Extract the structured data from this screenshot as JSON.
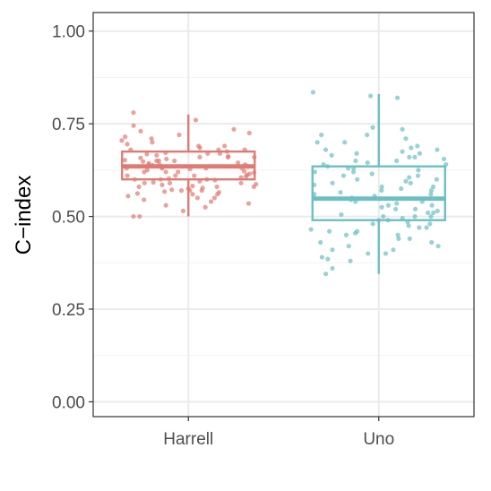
{
  "chart_data": {
    "type": "boxplot",
    "ylabel": "C−index",
    "xlabel": "",
    "title": "",
    "ylim": [
      -0.04,
      1.05
    ],
    "yticks": [
      0.0,
      0.25,
      0.5,
      0.75,
      1.0
    ],
    "ytick_labels": [
      "0.00",
      "0.25",
      "0.50",
      "0.75",
      "1.00"
    ],
    "grid": true,
    "legend": "none",
    "categories": [
      "Harrell",
      "Uno"
    ],
    "series": [
      {
        "category": "Harrell",
        "color": "#e07b73",
        "box": {
          "min": 0.5,
          "q1": 0.6,
          "median": 0.635,
          "q3": 0.675,
          "max": 0.775
        },
        "points": [
          0.78,
          0.735,
          0.725,
          0.715,
          0.705,
          0.695,
          0.69,
          0.685,
          0.68,
          0.675,
          0.672,
          0.668,
          0.665,
          0.662,
          0.66,
          0.658,
          0.655,
          0.652,
          0.65,
          0.648,
          0.645,
          0.643,
          0.64,
          0.638,
          0.636,
          0.634,
          0.632,
          0.63,
          0.628,
          0.625,
          0.622,
          0.62,
          0.618,
          0.615,
          0.612,
          0.61,
          0.608,
          0.605,
          0.602,
          0.6,
          0.598,
          0.595,
          0.592,
          0.59,
          0.587,
          0.585,
          0.582,
          0.58,
          0.577,
          0.575,
          0.572,
          0.57,
          0.567,
          0.565,
          0.562,
          0.56,
          0.555,
          0.55,
          0.545,
          0.54,
          0.535,
          0.53,
          0.525,
          0.515,
          0.5,
          0.5,
          0.76,
          0.745,
          0.73,
          0.72,
          0.71,
          0.7,
          0.69,
          0.68,
          0.67,
          0.66,
          0.65,
          0.64,
          0.63,
          0.62,
          0.61,
          0.6,
          0.59,
          0.58,
          0.57,
          0.56,
          0.55,
          0.64,
          0.63,
          0.62,
          0.66,
          0.61,
          0.65,
          0.59,
          0.6,
          0.67,
          0.58,
          0.57,
          0.68,
          0.63
        ]
      },
      {
        "category": "Uno",
        "color": "#6cbfc2",
        "box": {
          "min": 0.345,
          "q1": 0.49,
          "median": 0.548,
          "q3": 0.635,
          "max": 0.83
        },
        "points": [
          0.835,
          0.825,
          0.82,
          0.74,
          0.735,
          0.72,
          0.71,
          0.7,
          0.69,
          0.685,
          0.68,
          0.675,
          0.67,
          0.665,
          0.66,
          0.655,
          0.65,
          0.645,
          0.64,
          0.635,
          0.63,
          0.625,
          0.62,
          0.615,
          0.61,
          0.605,
          0.6,
          0.595,
          0.59,
          0.585,
          0.58,
          0.575,
          0.57,
          0.565,
          0.56,
          0.555,
          0.55,
          0.545,
          0.54,
          0.535,
          0.53,
          0.525,
          0.52,
          0.515,
          0.51,
          0.505,
          0.5,
          0.495,
          0.49,
          0.485,
          0.48,
          0.475,
          0.47,
          0.465,
          0.46,
          0.455,
          0.45,
          0.44,
          0.43,
          0.42,
          0.41,
          0.4,
          0.39,
          0.385,
          0.38,
          0.36,
          0.345,
          0.7,
          0.66,
          0.62,
          0.58,
          0.54,
          0.5,
          0.46,
          0.42,
          0.68,
          0.64,
          0.6,
          0.56,
          0.52,
          0.48,
          0.44,
          0.4,
          0.57,
          0.53,
          0.61,
          0.49,
          0.45,
          0.67,
          0.63,
          0.59,
          0.55,
          0.51,
          0.47,
          0.43,
          0.72,
          0.65,
          0.41,
          0.5
        ]
      }
    ]
  }
}
